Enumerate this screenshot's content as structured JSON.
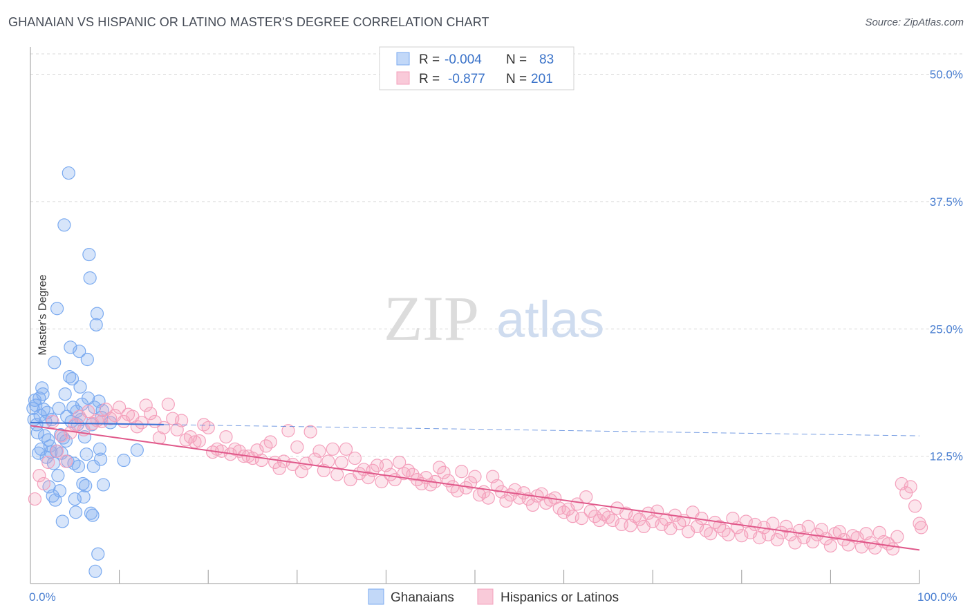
{
  "title": "GHANAIAN VS HISPANIC OR LATINO MASTER'S DEGREE CORRELATION CHART",
  "source": "Source: ZipAtlas.com",
  "watermark": {
    "zip": "ZIP",
    "atlas": "atlas"
  },
  "legend_top": [
    {
      "r_label": "R =",
      "r_value": "-0.004",
      "n_label": "N =",
      "n_value": "83",
      "color": "#7aaaf0"
    },
    {
      "r_label": "R =",
      "r_value": "-0.877",
      "n_label": "N = ",
      "n_value": "201",
      "color": "#f4a0bc"
    }
  ],
  "chart_data": {
    "type": "scatter",
    "xlabel": "",
    "ylabel": "Master's Degree",
    "xlim": [
      0,
      100
    ],
    "ylim": [
      0,
      52
    ],
    "x_tick_labels": [
      "0.0%",
      "100.0%"
    ],
    "y_ticks": [
      12.5,
      25.0,
      37.5,
      50.0
    ],
    "y_tick_labels": [
      "12.5%",
      "25.0%",
      "37.5%",
      "50.0%"
    ],
    "grid": "horizontal dashed",
    "legend_position": "bottom",
    "series": [
      {
        "name": "Ghanaians",
        "color": "#7aaaf0",
        "trend": {
          "x0": 0,
          "y0": 15.8,
          "x1": 100,
          "y1": 14.5,
          "solid_until": 15
        },
        "points": [
          [
            0.3,
            17.2
          ],
          [
            0.4,
            16.1
          ],
          [
            0.5,
            18.0
          ],
          [
            0.6,
            17.5
          ],
          [
            0.7,
            15.6
          ],
          [
            0.8,
            14.8
          ],
          [
            0.9,
            12.8
          ],
          [
            1.0,
            18.2
          ],
          [
            1.1,
            16.5
          ],
          [
            1.2,
            13.2
          ],
          [
            1.3,
            19.2
          ],
          [
            1.4,
            18.6
          ],
          [
            1.5,
            17.1
          ],
          [
            1.6,
            14.5
          ],
          [
            1.7,
            15.9
          ],
          [
            1.8,
            12.4
          ],
          [
            1.9,
            16.8
          ],
          [
            2.0,
            14.1
          ],
          [
            2.1,
            9.5
          ],
          [
            2.2,
            13.5
          ],
          [
            2.3,
            12.9
          ],
          [
            2.4,
            16.1
          ],
          [
            2.5,
            8.6
          ],
          [
            2.6,
            11.8
          ],
          [
            2.7,
            21.7
          ],
          [
            2.8,
            8.2
          ],
          [
            2.9,
            13.0
          ],
          [
            3.0,
            27.0
          ],
          [
            3.1,
            10.6
          ],
          [
            3.2,
            17.2
          ],
          [
            3.3,
            9.1
          ],
          [
            3.4,
            14.6
          ],
          [
            3.5,
            12.8
          ],
          [
            3.6,
            6.1
          ],
          [
            3.7,
            14.3
          ],
          [
            3.8,
            35.2
          ],
          [
            3.9,
            18.6
          ],
          [
            4.0,
            14.0
          ],
          [
            4.1,
            16.4
          ],
          [
            4.2,
            12.0
          ],
          [
            4.3,
            40.3
          ],
          [
            4.4,
            20.3
          ],
          [
            4.5,
            23.2
          ],
          [
            4.6,
            15.9
          ],
          [
            4.7,
            20.1
          ],
          [
            4.8,
            17.3
          ],
          [
            4.9,
            11.8
          ],
          [
            5.0,
            8.3
          ],
          [
            5.1,
            7.0
          ],
          [
            5.2,
            16.9
          ],
          [
            5.3,
            15.6
          ],
          [
            5.4,
            11.5
          ],
          [
            5.5,
            22.8
          ],
          [
            5.6,
            19.3
          ],
          [
            5.7,
            16.1
          ],
          [
            5.8,
            17.6
          ],
          [
            5.9,
            9.8
          ],
          [
            6.0,
            8.5
          ],
          [
            6.1,
            14.4
          ],
          [
            6.2,
            9.6
          ],
          [
            6.3,
            12.7
          ],
          [
            6.4,
            22.0
          ],
          [
            6.5,
            18.2
          ],
          [
            6.6,
            32.3
          ],
          [
            6.7,
            30.0
          ],
          [
            6.8,
            6.9
          ],
          [
            6.9,
            15.6
          ],
          [
            7.0,
            6.7
          ],
          [
            7.1,
            11.5
          ],
          [
            7.2,
            17.3
          ],
          [
            7.3,
            1.2
          ],
          [
            7.4,
            25.4
          ],
          [
            7.5,
            26.5
          ],
          [
            7.6,
            2.9
          ],
          [
            7.7,
            17.9
          ],
          [
            7.8,
            13.2
          ],
          [
            7.9,
            12.2
          ],
          [
            8.0,
            16.3
          ],
          [
            8.1,
            17.0
          ],
          [
            8.2,
            9.7
          ],
          [
            9.0,
            15.8
          ],
          [
            10.5,
            12.1
          ],
          [
            12.0,
            13.1
          ]
        ]
      },
      {
        "name": "Hispanics or Latinos",
        "color": "#f4a0bc",
        "trend": {
          "x0": 0,
          "y0": 15.5,
          "x1": 100,
          "y1": 3.3,
          "solid_until": 100
        },
        "points": [
          [
            0.5,
            8.3
          ],
          [
            1.0,
            10.6
          ],
          [
            1.5,
            9.8
          ],
          [
            2.0,
            11.9
          ],
          [
            2.5,
            15.9
          ],
          [
            3.0,
            13.0
          ],
          [
            3.5,
            14.5
          ],
          [
            4.0,
            12.0
          ],
          [
            4.5,
            14.8
          ],
          [
            5.0,
            15.6
          ],
          [
            5.5,
            16.4
          ],
          [
            6.0,
            15.1
          ],
          [
            6.5,
            16.9
          ],
          [
            7.0,
            15.7
          ],
          [
            7.5,
            16.0
          ],
          [
            8.0,
            15.9
          ],
          [
            8.5,
            17.1
          ],
          [
            9.0,
            16.2
          ],
          [
            9.5,
            16.5
          ],
          [
            10.0,
            17.3
          ],
          [
            10.5,
            15.9
          ],
          [
            11.0,
            16.6
          ],
          [
            11.5,
            16.4
          ],
          [
            12.0,
            15.4
          ],
          [
            12.5,
            15.8
          ],
          [
            13.0,
            17.5
          ],
          [
            13.5,
            16.7
          ],
          [
            14.0,
            15.9
          ],
          [
            14.5,
            14.3
          ],
          [
            15.0,
            15.3
          ],
          [
            15.5,
            17.6
          ],
          [
            16.0,
            16.2
          ],
          [
            16.5,
            15.1
          ],
          [
            17.0,
            16.0
          ],
          [
            17.5,
            14.1
          ],
          [
            18.0,
            14.4
          ],
          [
            18.5,
            13.9
          ],
          [
            19.0,
            14.0
          ],
          [
            19.5,
            15.6
          ],
          [
            20.0,
            15.3
          ],
          [
            20.5,
            12.9
          ],
          [
            21.0,
            13.2
          ],
          [
            21.5,
            13.0
          ],
          [
            22.0,
            14.4
          ],
          [
            22.5,
            12.7
          ],
          [
            23.0,
            13.2
          ],
          [
            23.5,
            13.0
          ],
          [
            24.0,
            12.5
          ],
          [
            24.5,
            12.5
          ],
          [
            25.0,
            12.3
          ],
          [
            25.5,
            13.1
          ],
          [
            26.0,
            12.1
          ],
          [
            26.5,
            13.5
          ],
          [
            27.0,
            13.9
          ],
          [
            27.5,
            11.9
          ],
          [
            28.0,
            11.3
          ],
          [
            28.5,
            12.0
          ],
          [
            29.0,
            15.0
          ],
          [
            29.5,
            11.7
          ],
          [
            30.0,
            13.4
          ],
          [
            30.5,
            11.0
          ],
          [
            31.0,
            11.8
          ],
          [
            31.5,
            14.9
          ],
          [
            32.0,
            12.2
          ],
          [
            32.5,
            13.0
          ],
          [
            33.0,
            11.1
          ],
          [
            33.5,
            12.0
          ],
          [
            34.0,
            13.2
          ],
          [
            34.5,
            10.7
          ],
          [
            35.0,
            11.9
          ],
          [
            35.5,
            13.2
          ],
          [
            36.0,
            10.2
          ],
          [
            36.5,
            12.3
          ],
          [
            37.0,
            10.8
          ],
          [
            37.5,
            11.2
          ],
          [
            38.0,
            10.4
          ],
          [
            38.5,
            11.1
          ],
          [
            39.0,
            11.6
          ],
          [
            39.5,
            10.0
          ],
          [
            40.0,
            11.6
          ],
          [
            40.5,
            10.7
          ],
          [
            41.0,
            10.2
          ],
          [
            41.5,
            11.9
          ],
          [
            42.0,
            10.8
          ],
          [
            42.5,
            11.1
          ],
          [
            43.0,
            10.7
          ],
          [
            43.5,
            10.2
          ],
          [
            44.0,
            9.8
          ],
          [
            44.5,
            10.4
          ],
          [
            45.0,
            9.7
          ],
          [
            45.5,
            10.0
          ],
          [
            46.0,
            11.4
          ],
          [
            46.5,
            10.9
          ],
          [
            47.0,
            10.1
          ],
          [
            47.5,
            9.5
          ],
          [
            48.0,
            9.1
          ],
          [
            48.5,
            11.0
          ],
          [
            49.0,
            9.4
          ],
          [
            49.5,
            9.9
          ],
          [
            50.0,
            10.5
          ],
          [
            50.5,
            8.7
          ],
          [
            51.0,
            9.0
          ],
          [
            51.5,
            8.4
          ],
          [
            52.0,
            10.5
          ],
          [
            52.5,
            9.6
          ],
          [
            53.0,
            9.0
          ],
          [
            53.5,
            8.1
          ],
          [
            54.0,
            8.7
          ],
          [
            54.5,
            9.2
          ],
          [
            55.0,
            8.4
          ],
          [
            55.5,
            8.9
          ],
          [
            56.0,
            8.3
          ],
          [
            56.5,
            7.7
          ],
          [
            57.0,
            8.6
          ],
          [
            57.5,
            8.8
          ],
          [
            58.0,
            7.9
          ],
          [
            58.5,
            8.2
          ],
          [
            59.0,
            8.4
          ],
          [
            59.5,
            7.4
          ],
          [
            60.0,
            7.0
          ],
          [
            60.5,
            7.3
          ],
          [
            61.0,
            6.6
          ],
          [
            61.5,
            7.8
          ],
          [
            62.0,
            6.4
          ],
          [
            62.5,
            8.5
          ],
          [
            63.0,
            7.1
          ],
          [
            63.5,
            6.6
          ],
          [
            64.0,
            6.2
          ],
          [
            64.5,
            6.8
          ],
          [
            65.0,
            6.5
          ],
          [
            65.5,
            6.2
          ],
          [
            66.0,
            7.4
          ],
          [
            66.5,
            5.8
          ],
          [
            67.0,
            6.9
          ],
          [
            67.5,
            5.7
          ],
          [
            68.0,
            6.6
          ],
          [
            68.5,
            6.3
          ],
          [
            69.0,
            5.6
          ],
          [
            69.5,
            6.9
          ],
          [
            70.0,
            6.1
          ],
          [
            70.5,
            7.1
          ],
          [
            71.0,
            5.8
          ],
          [
            71.5,
            6.3
          ],
          [
            72.0,
            5.4
          ],
          [
            72.5,
            6.7
          ],
          [
            73.0,
            5.9
          ],
          [
            73.5,
            6.2
          ],
          [
            74.0,
            5.1
          ],
          [
            74.5,
            7.0
          ],
          [
            75.0,
            5.6
          ],
          [
            75.5,
            6.4
          ],
          [
            76.0,
            5.2
          ],
          [
            76.5,
            4.9
          ],
          [
            77.0,
            6.0
          ],
          [
            77.5,
            5.6
          ],
          [
            78.0,
            5.2
          ],
          [
            78.5,
            4.8
          ],
          [
            79.0,
            6.4
          ],
          [
            79.5,
            5.5
          ],
          [
            80.0,
            4.7
          ],
          [
            80.5,
            6.1
          ],
          [
            81.0,
            5.0
          ],
          [
            81.5,
            5.8
          ],
          [
            82.0,
            4.5
          ],
          [
            82.5,
            5.5
          ],
          [
            83.0,
            4.8
          ],
          [
            83.5,
            5.9
          ],
          [
            84.0,
            4.3
          ],
          [
            84.5,
            5.0
          ],
          [
            85.0,
            5.6
          ],
          [
            85.5,
            4.8
          ],
          [
            86.0,
            4.0
          ],
          [
            86.5,
            5.2
          ],
          [
            87.0,
            4.5
          ],
          [
            87.5,
            5.6
          ],
          [
            88.0,
            4.1
          ],
          [
            88.5,
            4.8
          ],
          [
            89.0,
            5.3
          ],
          [
            89.5,
            4.4
          ],
          [
            90.0,
            3.7
          ],
          [
            90.5,
            4.9
          ],
          [
            91.0,
            5.1
          ],
          [
            91.5,
            4.3
          ],
          [
            92.0,
            3.8
          ],
          [
            92.5,
            4.7
          ],
          [
            93.0,
            4.5
          ],
          [
            93.5,
            3.6
          ],
          [
            94.0,
            4.9
          ],
          [
            94.5,
            4.0
          ],
          [
            95.0,
            3.5
          ],
          [
            95.5,
            5.0
          ],
          [
            96.0,
            4.1
          ],
          [
            96.5,
            3.9
          ],
          [
            97.0,
            3.4
          ],
          [
            97.5,
            4.6
          ],
          [
            98.0,
            9.8
          ],
          [
            98.5,
            8.9
          ],
          [
            99.0,
            9.5
          ],
          [
            99.5,
            7.6
          ],
          [
            100.0,
            5.9
          ],
          [
            100.2,
            5.5
          ]
        ]
      }
    ]
  }
}
